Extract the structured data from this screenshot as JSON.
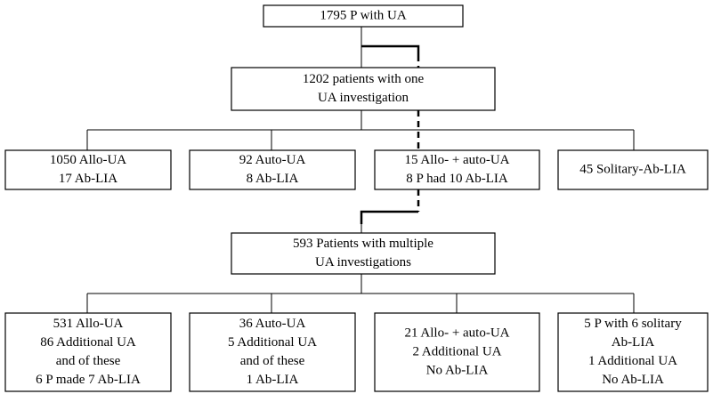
{
  "nodes": [
    {
      "lines": [
        "1795 P with UA"
      ]
    },
    {
      "lines": [
        "1202 patients with one",
        "UA investigation"
      ]
    },
    {
      "lines": [
        "1050 Allo-UA",
        "17 Ab-LIA"
      ]
    },
    {
      "lines": [
        "92 Auto-UA",
        "8 Ab-LIA"
      ]
    },
    {
      "lines": [
        "15 Allo- + auto-UA",
        "8 P had 10 Ab-LIA"
      ]
    },
    {
      "lines": [
        "45 Solitary-Ab-LIA"
      ]
    },
    {
      "lines": [
        "593 Patients with multiple",
        "UA investigations"
      ]
    },
    {
      "lines": [
        "531 Allo-UA",
        "86 Additional UA",
        "and of these",
        "6 P made 7 Ab-LIA"
      ]
    },
    {
      "lines": [
        "36 Auto-UA",
        "5 Additional UA",
        "and of these",
        "1 Ab-LIA"
      ]
    },
    {
      "lines": [
        "21 Allo- + auto-UA",
        "2 Additional UA",
        "No Ab-LIA"
      ]
    },
    {
      "lines": [
        "5 P with 6 solitary",
        "Ab-LIA",
        "1 Additional UA",
        "No Ab-LIA"
      ]
    }
  ]
}
